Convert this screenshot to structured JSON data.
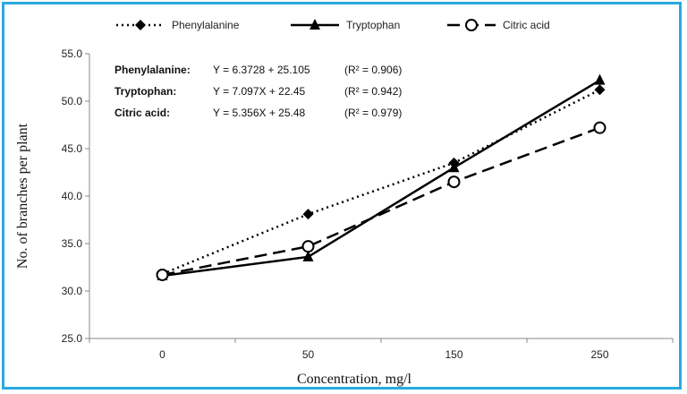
{
  "chart_data": {
    "type": "line",
    "title": "",
    "xlabel": "Concentration, mg/l",
    "ylabel": "No. of branches per plant",
    "categories": [
      "0",
      "50",
      "150",
      "250"
    ],
    "ylim": [
      25.0,
      55.0
    ],
    "yticks": [
      "25.0",
      "30.0",
      "35.0",
      "40.0",
      "45.0",
      "50.0",
      "55.0"
    ],
    "grid": false,
    "legend_position": "top",
    "series": [
      {
        "name": "Phenylalanine",
        "values": [
          31.8,
          38.1,
          43.5,
          51.2
        ],
        "color": "#000000",
        "line_style": "dotted",
        "marker": "diamond"
      },
      {
        "name": "Tryptophan",
        "values": [
          31.6,
          33.6,
          43.0,
          52.2
        ],
        "color": "#000000",
        "line_style": "solid",
        "marker": "triangle"
      },
      {
        "name": "Citric acid",
        "values": [
          31.7,
          34.7,
          41.5,
          47.2
        ],
        "color": "#000000",
        "line_style": "dashed",
        "marker": "open-circle"
      }
    ],
    "annotations": [
      {
        "label": "Phenylalanine:",
        "equation": "Y = 6.3728 + 25.105",
        "r2": "(R² = 0.906)"
      },
      {
        "label": "Tryptophan:",
        "equation": "Y = 7.097X + 22.45",
        "r2": "(R² = 0.942)"
      },
      {
        "label": "Citric acid:",
        "equation": "Y = 5.356X + 25.48",
        "r2": "(R² = 0.979)"
      }
    ]
  },
  "frame_color": "#29a9e1"
}
